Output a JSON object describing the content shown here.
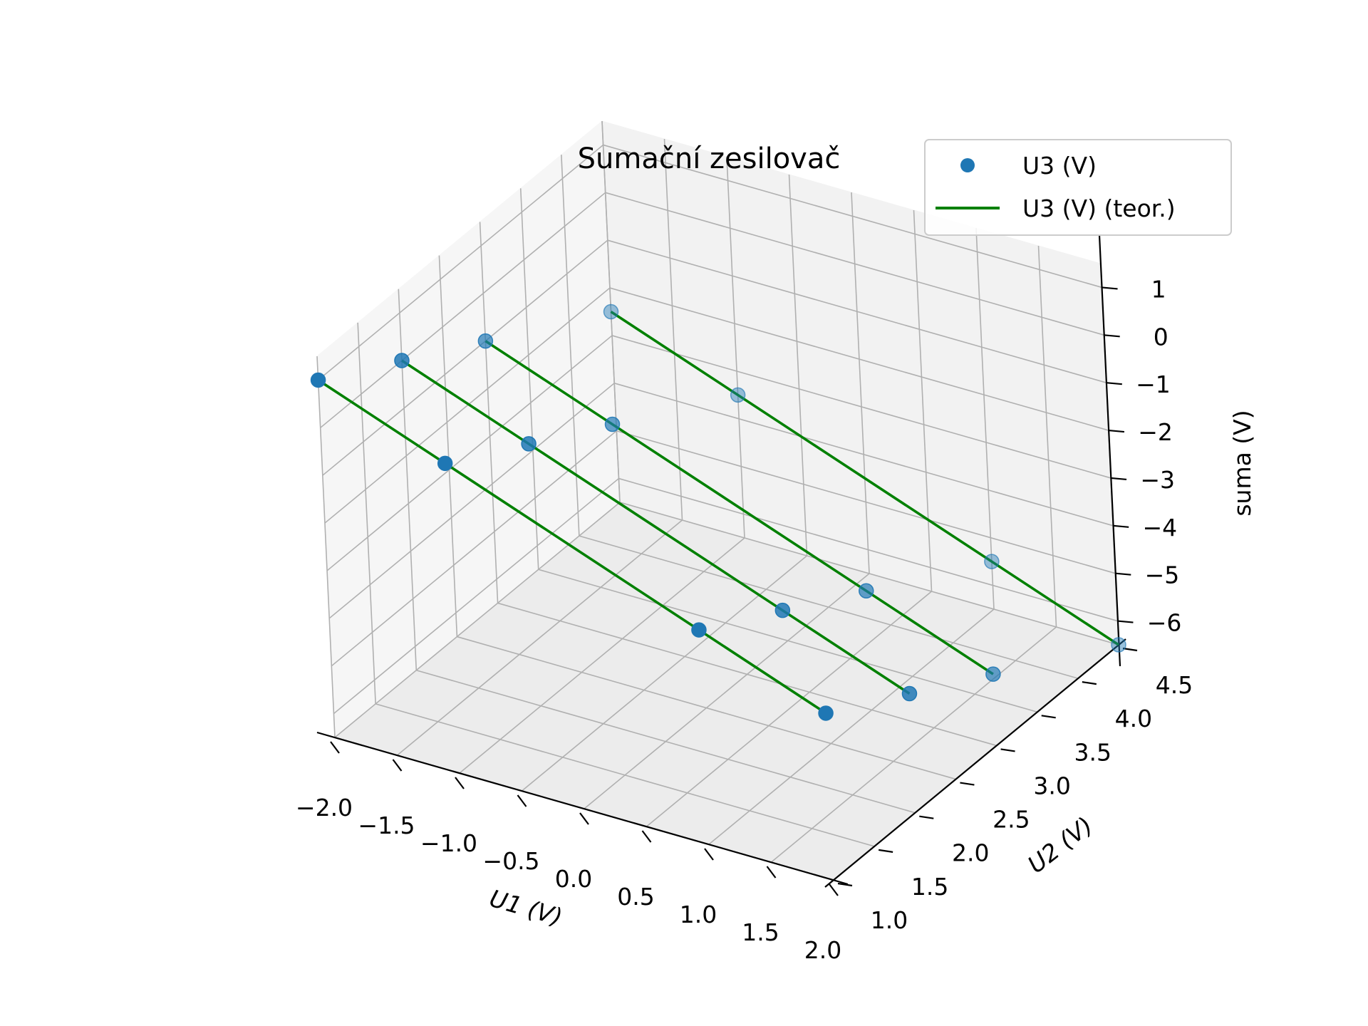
{
  "chart_data": {
    "type": "scatter3d",
    "title": "Sumační zesilovač",
    "xlabel": "U1 (V)",
    "ylabel": "U2 (V)",
    "zlabel": "suma (V)",
    "xlim": [
      -2.0,
      2.0
    ],
    "ylim": [
      1.0,
      4.5
    ],
    "zlim": [
      -6.5,
      1.5
    ],
    "xticks": [
      "−2.0",
      "−1.5",
      "−1.0",
      "−0.5",
      "0.0",
      "0.5",
      "1.0",
      "1.5",
      "2.0"
    ],
    "yticks": [
      "1.0",
      "1.5",
      "2.0",
      "2.5",
      "3.0",
      "3.5",
      "4.0",
      "4.5"
    ],
    "zticks": [
      "1",
      "0",
      "−1",
      "−2",
      "−3",
      "−4",
      "−5",
      "−6"
    ],
    "grid": true,
    "legend_position": "top-right",
    "series": [
      {
        "name": "U3 (V)",
        "kind": "scatter",
        "color": "#1f77b4",
        "points": [
          {
            "x": -2.0,
            "y": 1.0,
            "z": 1.0
          },
          {
            "x": -1.0,
            "y": 1.0,
            "z": 0.0
          },
          {
            "x": 1.0,
            "y": 1.0,
            "z": -2.0
          },
          {
            "x": 2.0,
            "y": 1.0,
            "z": -3.0
          },
          {
            "x": -2.0,
            "y": 2.0,
            "z": 0.0
          },
          {
            "x": -1.0,
            "y": 2.0,
            "z": -1.0
          },
          {
            "x": 1.0,
            "y": 2.0,
            "z": -3.0
          },
          {
            "x": 2.0,
            "y": 2.0,
            "z": -4.0
          },
          {
            "x": -2.0,
            "y": 3.0,
            "z": -1.0
          },
          {
            "x": -1.0,
            "y": 3.0,
            "z": -2.0
          },
          {
            "x": 1.0,
            "y": 3.0,
            "z": -4.0
          },
          {
            "x": 2.0,
            "y": 3.0,
            "z": -5.0
          },
          {
            "x": -2.0,
            "y": 4.5,
            "z": -2.5
          },
          {
            "x": -1.0,
            "y": 4.5,
            "z": -3.5
          },
          {
            "x": 1.0,
            "y": 4.5,
            "z": -5.5
          },
          {
            "x": 2.0,
            "y": 4.5,
            "z": -6.5
          }
        ]
      },
      {
        "name": "U3 (V) (teor.)",
        "kind": "line",
        "color": "#008000",
        "lines": [
          {
            "y": 1.0,
            "x": [
              -2.0,
              2.0
            ],
            "z": [
              1.0,
              -3.0
            ]
          },
          {
            "y": 2.0,
            "x": [
              -2.0,
              2.0
            ],
            "z": [
              0.0,
              -4.0
            ]
          },
          {
            "y": 3.0,
            "x": [
              -2.0,
              2.0
            ],
            "z": [
              -1.0,
              -5.0
            ]
          },
          {
            "y": 4.5,
            "x": [
              -2.0,
              2.0
            ],
            "z": [
              -2.5,
              -6.5
            ]
          }
        ]
      }
    ]
  }
}
